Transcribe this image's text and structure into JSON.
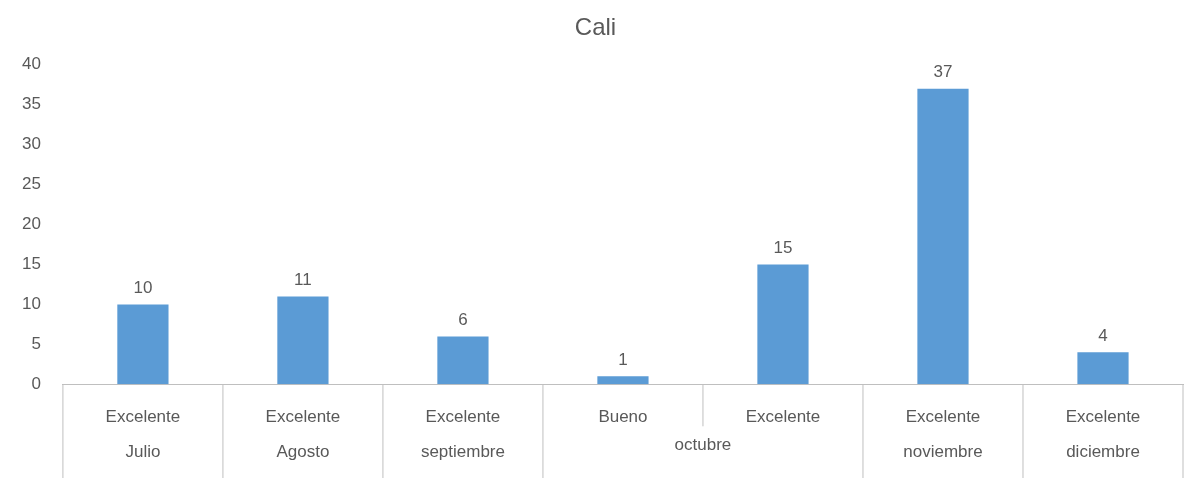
{
  "chart_data": {
    "type": "bar",
    "title": "Cali",
    "categories": [
      "Excelente\nJulio",
      "Excelente\nAgosto",
      "Excelente\nseptiembre",
      "Bueno",
      "Excelente",
      "Excelente\nnoviembre",
      "Excelente\ndiciembre"
    ],
    "annotations": [
      "octubre"
    ],
    "values": [
      10,
      11,
      6,
      1,
      15,
      37,
      4
    ],
    "color": "#5b9bd5",
    "ylim": [
      0,
      40
    ],
    "yticks": [
      0,
      5,
      10,
      15,
      20,
      25,
      30,
      35,
      40
    ],
    "data_labels": true,
    "grid": false,
    "legend": false
  }
}
